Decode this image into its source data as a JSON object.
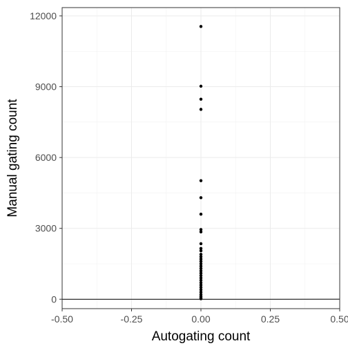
{
  "chart_data": {
    "type": "scatter",
    "title": "",
    "xlabel": "Autogating count",
    "ylabel": "Manual gating count",
    "xlim": [
      -0.5,
      0.5
    ],
    "ylim": [
      0,
      12000
    ],
    "x_ticks": [
      -0.5,
      -0.25,
      0,
      0.25,
      0.5
    ],
    "x_tick_labels": [
      "-0.50",
      "-0.25",
      "0.00",
      "0.25",
      "0.50"
    ],
    "y_ticks": [
      0,
      3000,
      6000,
      9000,
      12000
    ],
    "y_tick_labels": [
      "0",
      "3000",
      "6000",
      "9000",
      "12000"
    ],
    "reference_line": {
      "type": "identity",
      "slope": 1,
      "intercept": 0
    },
    "grid": true,
    "theme": "bw",
    "point_color": "#000000",
    "points": [
      {
        "x": 0,
        "y": 11550
      },
      {
        "x": 0,
        "y": 9020
      },
      {
        "x": 0,
        "y": 8470
      },
      {
        "x": 0,
        "y": 8040
      },
      {
        "x": 0,
        "y": 5020
      },
      {
        "x": 0,
        "y": 4300
      },
      {
        "x": 0,
        "y": 3600
      },
      {
        "x": 0,
        "y": 2950
      },
      {
        "x": 0,
        "y": 2850
      },
      {
        "x": 0,
        "y": 2350
      },
      {
        "x": 0,
        "y": 2150
      },
      {
        "x": 0,
        "y": 2050
      },
      {
        "x": 0,
        "y": 1900
      },
      {
        "x": 0,
        "y": 1800
      },
      {
        "x": 0,
        "y": 1700
      },
      {
        "x": 0,
        "y": 1600
      },
      {
        "x": 0,
        "y": 1500
      },
      {
        "x": 0,
        "y": 1400
      },
      {
        "x": 0,
        "y": 1300
      },
      {
        "x": 0,
        "y": 1200
      },
      {
        "x": 0,
        "y": 1100
      },
      {
        "x": 0,
        "y": 1000
      },
      {
        "x": 0,
        "y": 900
      },
      {
        "x": 0,
        "y": 800
      },
      {
        "x": 0,
        "y": 700
      },
      {
        "x": 0,
        "y": 600
      },
      {
        "x": 0,
        "y": 500
      },
      {
        "x": 0,
        "y": 400
      },
      {
        "x": 0,
        "y": 300
      },
      {
        "x": 0,
        "y": 200
      },
      {
        "x": 0,
        "y": 120
      },
      {
        "x": 0,
        "y": 60
      },
      {
        "x": 0,
        "y": 20
      }
    ]
  }
}
